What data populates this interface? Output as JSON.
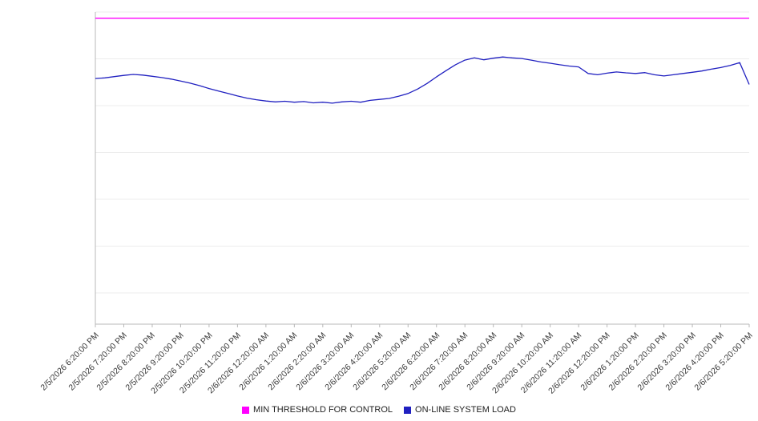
{
  "chart_data": {
    "type": "line",
    "title": "",
    "xlabel": "",
    "ylabel": "",
    "ylim": [
      0,
      100
    ],
    "grid": {
      "horizontal_values": [
        10,
        25,
        40,
        55,
        70,
        85,
        100
      ]
    },
    "legend_position": "bottom",
    "x_tick_labels": [
      "2/5/2026 6:20:00 PM",
      "2/5/2026 7:20:00 PM",
      "2/5/2026 8:20:00 PM",
      "2/5/2026 9:20:00 PM",
      "2/5/2026 10:20:00 PM",
      "2/5/2026 11:20:00 PM",
      "2/6/2026 12:20:00 AM",
      "2/6/2026 1:20:00 AM",
      "2/6/2026 2:20:00 AM",
      "2/6/2026 3:20:00 AM",
      "2/6/2026 4:20:00 AM",
      "2/6/2026 5:20:00 AM",
      "2/6/2026 6:20:00 AM",
      "2/6/2026 7:20:00 AM",
      "2/6/2026 8:20:00 AM",
      "2/6/2026 9:20:00 AM",
      "2/6/2026 10:20:00 AM",
      "2/6/2026 11:20:00 AM",
      "2/6/2026 12:20:00 PM",
      "2/6/2026 1:20:00 PM",
      "2/6/2026 2:20:00 PM",
      "2/6/2026 3:20:00 PM",
      "2/6/2026 4:20:00 PM",
      "2/6/2026 5:20:00 PM"
    ],
    "series": [
      {
        "name": "MIN THRESHOLD FOR CONTROL",
        "color": "#ff00ff",
        "values": [
          98,
          98
        ]
      },
      {
        "name": "ON-LINE SYSTEM LOAD",
        "color": "#2020c0",
        "values": [
          78.7,
          78.9,
          79.3,
          79.7,
          80.0,
          79.8,
          79.4,
          79.0,
          78.5,
          77.9,
          77.2,
          76.4,
          75.5,
          74.7,
          73.9,
          73.1,
          72.4,
          71.9,
          71.5,
          71.2,
          71.4,
          71.1,
          71.3,
          70.9,
          71.1,
          70.8,
          71.2,
          71.4,
          71.1,
          71.7,
          72.0,
          72.3,
          73.0,
          73.9,
          75.3,
          77.1,
          79.2,
          81.2,
          83.1,
          84.6,
          85.3,
          84.7,
          85.2,
          85.6,
          85.3,
          85.1,
          84.6,
          84.0,
          83.6,
          83.1,
          82.7,
          82.4,
          80.3,
          79.9,
          80.4,
          80.8,
          80.5,
          80.3,
          80.6,
          79.9,
          79.5,
          79.9,
          80.3,
          80.7,
          81.1,
          81.7,
          82.2,
          82.9,
          83.8,
          76.8
        ]
      }
    ]
  },
  "legend": {
    "items": [
      {
        "label": "MIN THRESHOLD FOR CONTROL",
        "color": "#ff00ff"
      },
      {
        "label": "ON-LINE SYSTEM LOAD",
        "color": "#2020c0"
      }
    ]
  }
}
